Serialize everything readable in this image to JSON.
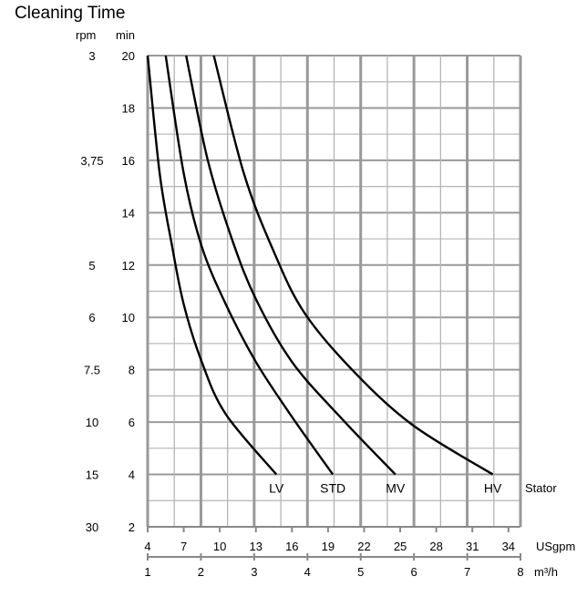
{
  "chart_data": {
    "type": "line",
    "title": "Cleaning Time",
    "ylabel": "min",
    "ylim": [
      2,
      20
    ],
    "yticks": [
      2,
      4,
      6,
      8,
      10,
      12,
      14,
      16,
      18,
      20
    ],
    "secondary_y": {
      "label": "rpm",
      "ticks": [
        {
          "text": "3",
          "at": 20
        },
        {
          "text": "3,75",
          "at": 16
        },
        {
          "text": "5",
          "at": 12
        },
        {
          "text": "6",
          "at": 10
        },
        {
          "text": "7.5",
          "at": 8
        },
        {
          "text": "10",
          "at": 6
        },
        {
          "text": "15",
          "at": 4
        },
        {
          "text": "30",
          "at": 2
        }
      ]
    },
    "x_primary": {
      "label": "USgpm",
      "xlim": [
        4,
        35
      ],
      "ticks": [
        4,
        7,
        10,
        13,
        16,
        19,
        22,
        25,
        28,
        31,
        34
      ]
    },
    "x_secondary": {
      "label": "m³/h",
      "xlim": [
        1,
        8
      ],
      "ticks": [
        1,
        2,
        3,
        4,
        5,
        6,
        7,
        8
      ]
    },
    "series_label": "Stator",
    "series": [
      {
        "name": "LV",
        "x": [
          4.0,
          5.0,
          6.0,
          7.0,
          8.5,
          10.5,
          14.7
        ],
        "y": [
          20,
          15.5,
          12.8,
          10.5,
          8.3,
          6.3,
          4
        ]
      },
      {
        "name": "STD",
        "x": [
          5.5,
          7.0,
          8.5,
          10.5,
          13.0,
          16.0,
          19.4
        ],
        "y": [
          20,
          15.5,
          12.7,
          10.5,
          8.3,
          6.2,
          4
        ]
      },
      {
        "name": "MV",
        "x": [
          7.2,
          9.0,
          11.0,
          13.0,
          16.0,
          20.0,
          24.6
        ],
        "y": [
          20,
          16.0,
          13.0,
          10.7,
          8.3,
          6.2,
          4
        ]
      },
      {
        "name": "HV",
        "x": [
          9.5,
          12.0,
          14.5,
          17.0,
          21.0,
          26.0,
          32.7
        ],
        "y": [
          20,
          15.5,
          12.5,
          10.2,
          8.0,
          5.9,
          4
        ]
      }
    ]
  }
}
